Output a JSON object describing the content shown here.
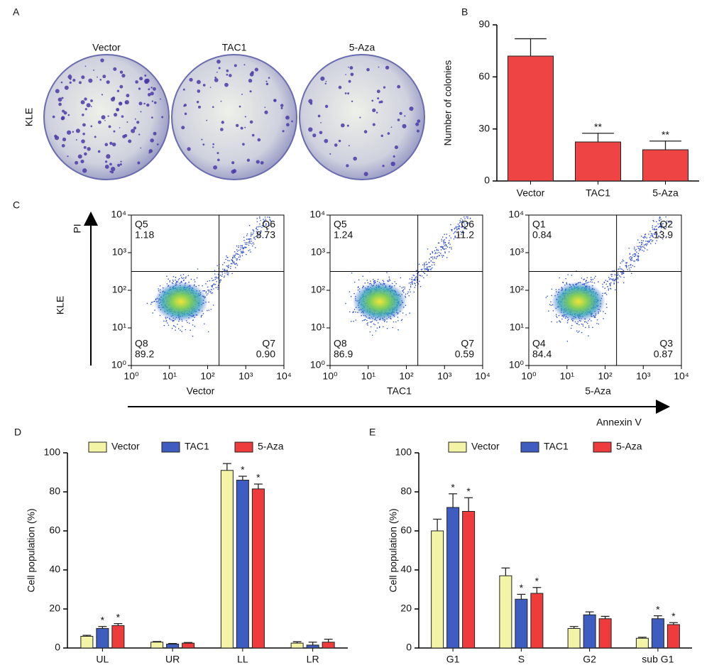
{
  "colony_assay": {
    "panel": "A",
    "row_label": "KLE",
    "labels": [
      "Vector",
      "TAC1",
      "5-Aza"
    ]
  },
  "flow_cytometry": {
    "panel": "C",
    "row_label": "KLE",
    "y_label": "PI",
    "x_label": "Annexin V",
    "log": true,
    "xlim": [
      1,
      10000
    ],
    "ylim": [
      1,
      10000
    ],
    "xticks": [
      {
        "value": 1,
        "label": "10⁰"
      },
      {
        "value": 10,
        "label": "10¹"
      },
      {
        "value": 100,
        "label": "10²"
      },
      {
        "value": 1000,
        "label": "10³"
      },
      {
        "value": 10000,
        "label": "10⁴"
      }
    ],
    "yticks": [
      {
        "value": 1,
        "label": "10⁰"
      },
      {
        "value": 10,
        "label": "10¹"
      },
      {
        "value": 100,
        "label": "10²"
      },
      {
        "value": 1000,
        "label": "10³"
      },
      {
        "value": 10000,
        "label": "10⁴"
      }
    ],
    "plots": [
      {
        "name": "Vector",
        "quadrants": [
          {
            "label": "Q5",
            "percent": "1.18"
          },
          {
            "label": "Q6",
            "percent": "8.73"
          },
          {
            "label": "Q8",
            "percent": "89.2"
          },
          {
            "label": "Q7",
            "percent": "0.90"
          }
        ]
      },
      {
        "name": "TAC1",
        "quadrants": [
          {
            "label": "Q5",
            "percent": "1.24"
          },
          {
            "label": "Q6",
            "percent": "11.2"
          },
          {
            "label": "Q8",
            "percent": "86.9"
          },
          {
            "label": "Q7",
            "percent": "0.59"
          }
        ]
      },
      {
        "name": "5-Aza",
        "quadrants": [
          {
            "label": "Q1",
            "percent": "0.84"
          },
          {
            "label": "Q2",
            "percent": "13.9"
          },
          {
            "label": "Q4",
            "percent": "84.4"
          },
          {
            "label": "Q3",
            "percent": "0.87"
          }
        ]
      }
    ]
  },
  "chart_data": [
    {
      "type": "bar",
      "panel": "B",
      "ylabel": "Number of colonies",
      "categories": [
        "Vector",
        "TAC1",
        "5-Aza"
      ],
      "values": [
        72,
        22.5,
        18
      ],
      "errors": [
        10,
        5,
        5
      ],
      "annotations": [
        null,
        "**",
        "**"
      ],
      "color": "#ee4444",
      "ylim": [
        0,
        90
      ],
      "yticks": [
        0,
        30,
        60,
        90
      ]
    },
    {
      "type": "bar",
      "panel": "D",
      "ylabel": "Cell population (%)",
      "categories": [
        "UL",
        "UR",
        "LL",
        "LR"
      ],
      "legend": "top",
      "series": [
        {
          "name": "Vector",
          "color": "#f4f4a6",
          "values": [
            6,
            3,
            91,
            2.5
          ],
          "errors": [
            0.5,
            0.3,
            3.5,
            0.7
          ],
          "annotations": [
            null,
            null,
            null,
            null
          ]
        },
        {
          "name": "TAC1",
          "color": "#3f5cc0",
          "values": [
            10,
            2,
            86,
            1.5
          ],
          "errors": [
            1,
            0.3,
            2,
            1.5
          ],
          "annotations": [
            "*",
            null,
            "*",
            null
          ]
        },
        {
          "name": "5-Aza",
          "color": "#ee3b3b",
          "values": [
            11.5,
            2.5,
            81.5,
            3
          ],
          "errors": [
            1,
            0.3,
            2.5,
            1.5
          ],
          "annotations": [
            "*",
            null,
            "*",
            null
          ]
        }
      ],
      "ylim": [
        0,
        100
      ],
      "yticks": [
        0,
        20,
        40,
        60,
        80,
        100
      ]
    },
    {
      "type": "bar",
      "panel": "E",
      "ylabel": "Cell population (%)",
      "categories": [
        "G1",
        "S",
        "G2",
        "sub G1"
      ],
      "legend": "top",
      "series": [
        {
          "name": "Vector",
          "color": "#f4f4a6",
          "values": [
            60,
            37,
            10,
            5
          ],
          "errors": [
            6,
            4,
            1,
            0.5
          ],
          "annotations": [
            null,
            null,
            null,
            null
          ]
        },
        {
          "name": "TAC1",
          "color": "#3f5cc0",
          "values": [
            72,
            25,
            17,
            15
          ],
          "errors": [
            7,
            2.5,
            1.5,
            1.5
          ],
          "annotations": [
            "*",
            "*",
            null,
            "*"
          ]
        },
        {
          "name": "5-Aza",
          "color": "#ee3b3b",
          "values": [
            70,
            28,
            15,
            12
          ],
          "errors": [
            7,
            3,
            1.2,
            1
          ],
          "annotations": [
            "*",
            "*",
            null,
            "*"
          ]
        }
      ],
      "ylim": [
        0,
        100
      ],
      "yticks": [
        0,
        20,
        40,
        60,
        80,
        100
      ]
    }
  ]
}
